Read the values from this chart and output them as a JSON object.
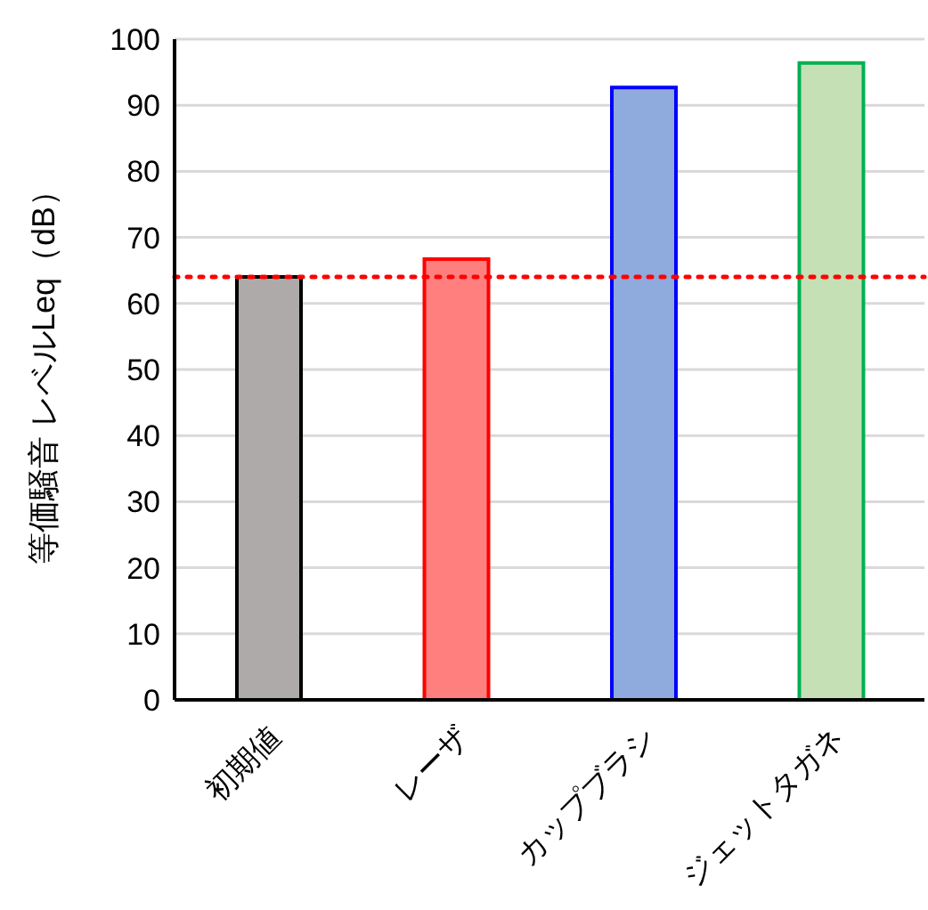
{
  "chart_data": {
    "type": "bar",
    "ylabel": "等価騒音 レベルLeq（dB）",
    "categories": [
      "初期値",
      "レーザ",
      "カップブラシ",
      "ジェットタガネ"
    ],
    "values": [
      64.0,
      66.7,
      92.7,
      96.4
    ],
    "colors": [
      "#aeaaaa",
      "#ff7f7f",
      "#8faadc",
      "#c5e0b4"
    ],
    "ylim": [
      0,
      100
    ],
    "yticks": [
      0,
      10,
      20,
      30,
      40,
      50,
      60,
      70,
      80,
      90,
      100
    ],
    "grid": "y",
    "ref_lines": [
      {
        "axis": "y",
        "value": 64.0,
        "color": "#ff0000",
        "line_style": "dotted"
      }
    ]
  }
}
